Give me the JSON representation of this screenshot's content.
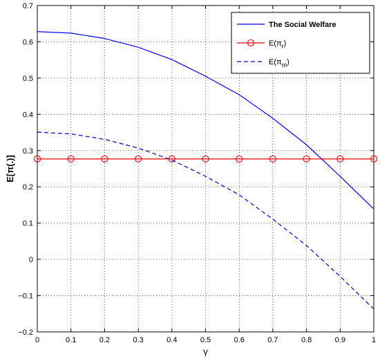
{
  "chart_data": {
    "type": "line",
    "xlabel": "γ",
    "ylabel": "E[π(.)]",
    "xlim": [
      0,
      1
    ],
    "ylim": [
      -0.2,
      0.7
    ],
    "xticks": [
      "0",
      "0.1",
      "0.2",
      "0.3",
      "0.4",
      "0.5",
      "0.6",
      "0.7",
      "0.8",
      "0.9",
      "1"
    ],
    "yticks": [
      "−0.2",
      "−0.1",
      "0",
      "0.1",
      "0.2",
      "0.3",
      "0.4",
      "0.5",
      "0.6",
      "0.7"
    ],
    "grid": true,
    "legend_position": "top-right",
    "x": [
      0,
      0.1,
      0.2,
      0.3,
      0.4,
      0.5,
      0.6,
      0.7,
      0.8,
      0.9,
      1.0
    ],
    "series": [
      {
        "name": "The Social Welfare",
        "legend_parts": [
          "The Social Welfare"
        ],
        "values": [
          0.628,
          0.624,
          0.609,
          0.585,
          0.551,
          0.505,
          0.454,
          0.389,
          0.316,
          0.229,
          0.139
        ],
        "color": "#0000ff",
        "style": "solid",
        "marker": "none"
      },
      {
        "name": "E(πr)",
        "legend_parts": [
          "E(π",
          "r",
          ")"
        ],
        "values": [
          0.277,
          0.277,
          0.277,
          0.277,
          0.277,
          0.277,
          0.277,
          0.277,
          0.277,
          0.277,
          0.277
        ],
        "color": "#ff0000",
        "style": "solid",
        "marker": "circle"
      },
      {
        "name": "E(πm)",
        "legend_parts": [
          "E(π",
          "m",
          ")"
        ],
        "values": [
          0.351,
          0.346,
          0.331,
          0.307,
          0.274,
          0.229,
          0.178,
          0.111,
          0.038,
          -0.047,
          -0.137
        ],
        "color": "#0000cc",
        "style": "dashed",
        "marker": "none"
      }
    ]
  }
}
